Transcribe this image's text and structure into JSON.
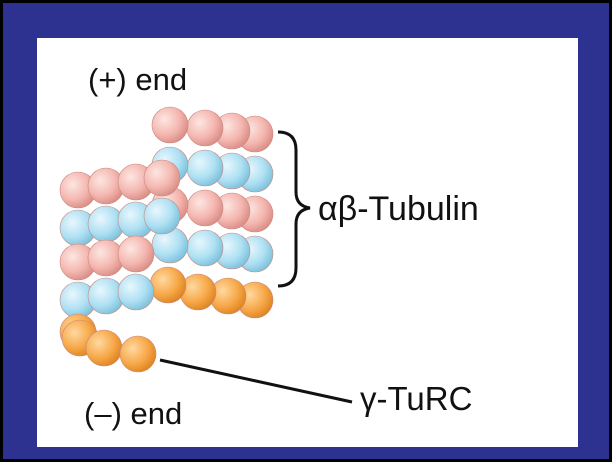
{
  "labels": {
    "plus_end": "(+) end",
    "tubulin": "αβ-Tubulin",
    "turc": "γ-TuRC",
    "minus_end": "(–) end"
  }
}
